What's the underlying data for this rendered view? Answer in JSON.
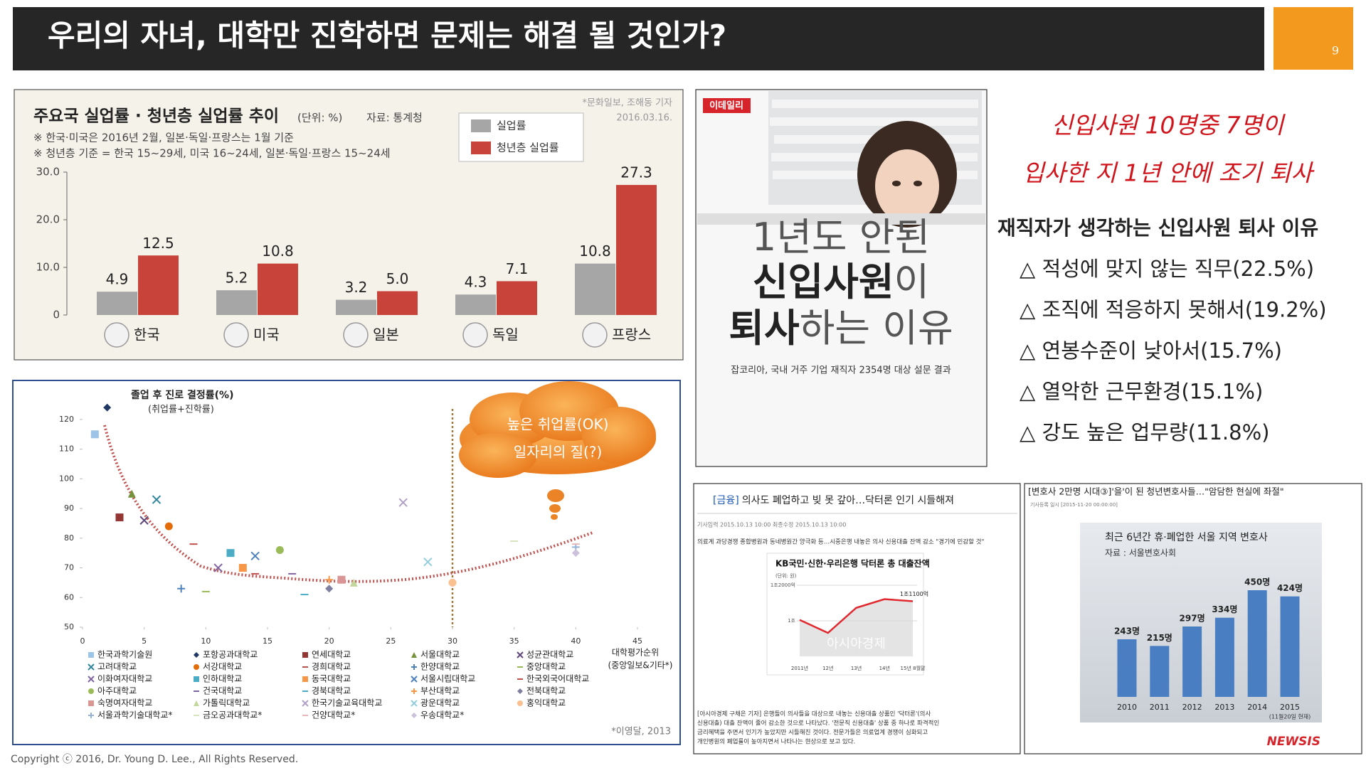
{
  "header": {
    "title": "우리의 자녀, 대학만 진학하면 문제는 해결 될 것인가?",
    "page_number": "9"
  },
  "unemployment_chart": {
    "type": "bar",
    "title": "주요국 실업률 · 청년층 실업률 추이",
    "unit": "(단위: %)",
    "source": "자료: 통계청",
    "credit": "*문화일보, 조해동 기자",
    "date": "2016.03.16.",
    "notes": [
      "※ 한국·미국은 2016년 2월, 일본·독일·프랑스는 1월 기준",
      "※ 청년층 기준 = 한국 15~29세, 미국 16~24세, 일본·독일·프랑스 15~24세"
    ],
    "categories": [
      "한국",
      "미국",
      "일본",
      "독일",
      "프랑스"
    ],
    "series": [
      {
        "name": "실업률",
        "color": "#a6a6a6",
        "values": [
          4.9,
          5.2,
          3.2,
          4.3,
          10.8
        ],
        "value_labels": [
          "4.9",
          "5.2",
          "3.2",
          "4.3",
          "10.8"
        ]
      },
      {
        "name": "청년층 실업률",
        "color": "#c8443a",
        "values": [
          12.5,
          10.8,
          5.0,
          7.1,
          27.3
        ],
        "value_labels": [
          "12.5",
          "10.8",
          "5.0",
          "7.1",
          "27.3"
        ]
      }
    ],
    "ylim": [
      0,
      30
    ],
    "yticks": [
      0,
      {
        "value": 10,
        "label": "10.0"
      },
      {
        "value": 20,
        "label": "20.0"
      },
      {
        "value": 30,
        "label": "30.0"
      }
    ]
  },
  "employment_chart": {
    "type": "scatter",
    "y_label": "졸업 후 진로 결정률(%)",
    "y_sublabel": "(취업률+진학률)",
    "x_label": "대학평가순위",
    "x_sublabel": "(중앙일보&기타*)",
    "callout": [
      "높은 취업률(OK)",
      "일자리의 질(?)"
    ],
    "credit": "*이영달, 2013",
    "xlim": [
      0,
      45
    ],
    "xticks": [
      0,
      5,
      10,
      15,
      20,
      25,
      30,
      35,
      40,
      45
    ],
    "ylim": [
      50,
      125
    ],
    "yticks": [
      50,
      60,
      70,
      80,
      90,
      100,
      110,
      120
    ],
    "reference_x": 30,
    "series": [
      {
        "name": "한국과학기술원",
        "color": "#9dc3e6",
        "marker": "square",
        "x": [
          1
        ],
        "values": [
          115
        ]
      },
      {
        "name": "포항공과대학교",
        "color": "#1f3864",
        "marker": "diamond",
        "x": [
          2
        ],
        "values": [
          124
        ]
      },
      {
        "name": "연세대학교",
        "color": "#943634",
        "marker": "square",
        "x": [
          3
        ],
        "values": [
          87
        ]
      },
      {
        "name": "서울대학교",
        "color": "#76923c",
        "marker": "triangle",
        "x": [
          4
        ],
        "values": [
          95
        ]
      },
      {
        "name": "성균관대학교",
        "color": "#5f497a",
        "marker": "x",
        "x": [
          5
        ],
        "values": [
          86
        ]
      },
      {
        "name": "고려대학교",
        "color": "#31859c",
        "marker": "x",
        "x": [
          6
        ],
        "values": [
          93
        ]
      },
      {
        "name": "서강대학교",
        "color": "#e36c09",
        "marker": "circle",
        "x": [
          7
        ],
        "values": [
          84
        ]
      },
      {
        "name": "경희대학교",
        "color": "#c0504d",
        "marker": "dash",
        "x": [
          9
        ],
        "values": [
          78
        ]
      },
      {
        "name": "한양대학교",
        "color": "#4f81bd",
        "marker": "plus",
        "x": [
          8
        ],
        "values": [
          63
        ]
      },
      {
        "name": "중앙대학교",
        "color": "#9bbb59",
        "marker": "dash",
        "x": [
          10
        ],
        "values": [
          62
        ]
      },
      {
        "name": "이화여자대학교",
        "color": "#8064a2",
        "marker": "x",
        "x": [
          11
        ],
        "values": [
          70
        ]
      },
      {
        "name": "인하대학교",
        "color": "#4bacc6",
        "marker": "square",
        "x": [
          12
        ],
        "values": [
          75
        ]
      },
      {
        "name": "동국대학교",
        "color": "#f79646",
        "marker": "square",
        "x": [
          13
        ],
        "values": [
          70
        ]
      },
      {
        "name": "서울시립대학교",
        "color": "#4f81bd",
        "marker": "x",
        "x": [
          14
        ],
        "values": [
          74
        ]
      },
      {
        "name": "한국외국어대학교",
        "color": "#c0504d",
        "marker": "dash",
        "x": [
          14
        ],
        "values": [
          68
        ]
      },
      {
        "name": "아주대학교",
        "color": "#9bbb59",
        "marker": "circle",
        "x": [
          16
        ],
        "values": [
          76
        ]
      },
      {
        "name": "건국대학교",
        "color": "#8064a2",
        "marker": "dash",
        "x": [
          17
        ],
        "values": [
          68
        ]
      },
      {
        "name": "경북대학교",
        "color": "#4bacc6",
        "marker": "dash",
        "x": [
          18
        ],
        "values": [
          61
        ]
      },
      {
        "name": "부산대학교",
        "color": "#f79646",
        "marker": "plus",
        "x": [
          20
        ],
        "values": [
          66
        ]
      },
      {
        "name": "전북대학교",
        "color": "#7f7f9f",
        "marker": "diamond",
        "x": [
          20
        ],
        "values": [
          63
        ]
      },
      {
        "name": "숙명여자대학교",
        "color": "#d99694",
        "marker": "square",
        "x": [
          21
        ],
        "values": [
          66
        ]
      },
      {
        "name": "가톨릭대학교",
        "color": "#c3d69b",
        "marker": "triangle",
        "x": [
          22
        ],
        "values": [
          65
        ]
      },
      {
        "name": "한국기술교육대학교",
        "color": "#b2a1c7",
        "marker": "x",
        "x": [
          26
        ],
        "values": [
          92
        ]
      },
      {
        "name": "광운대학교",
        "color": "#93cddd",
        "marker": "x",
        "x": [
          28
        ],
        "values": [
          72
        ]
      },
      {
        "name": "홍익대학교",
        "color": "#fac090",
        "marker": "circle",
        "x": [
          30
        ],
        "values": [
          65
        ]
      },
      {
        "name": "서울과학기술대학교*",
        "color": "#95b3d7",
        "marker": "plus",
        "x": [
          40
        ],
        "values": [
          77
        ]
      },
      {
        "name": "금오공과대학교*",
        "color": "#d7e4bd",
        "marker": "dash",
        "x": [
          35
        ],
        "values": [
          79
        ]
      },
      {
        "name": "건양대학교*",
        "color": "#e6b9b8",
        "marker": "dash",
        "x": [
          40
        ],
        "values": [
          78
        ]
      },
      {
        "name": "우송대학교*",
        "color": "#ccc1da",
        "marker": "diamond",
        "x": [
          40
        ],
        "values": [
          75
        ]
      }
    ]
  },
  "news_image": {
    "logo": "이데일리",
    "headline": [
      [
        "1년도 안된"
      ],
      [
        "신입사원",
        "이"
      ],
      [
        "퇴사",
        "하는 이유"
      ]
    ],
    "caption": "잡코리아, 국내 거주 기업 재직자 2354명 대상 설문 결과"
  },
  "survey": {
    "handwritten": [
      "신입사원 10명중 7명이",
      "입사한 지 1년 안에 조기 퇴사"
    ],
    "heading": "재직자가 생각하는 신입사원 퇴사 이유",
    "reasons": [
      "△ 적성에 맞지 않는 직무(22.5%)",
      "△ 조직에 적응하지 못해서(19.2%)",
      "△ 연봉수준이 낮아서(15.7%)",
      "△ 열악한 근무환경(15.1%)",
      "△ 강도 높은 업무량(11.8%)"
    ]
  },
  "doctor_loan_article": {
    "title_tag": "[금융]",
    "title": "의사도 폐업하고 빚 못 갚아…닥터론 인기 시들해져",
    "meta": "기사입력 2015.10.13 10:00   최종수정 2015.10.13 10:00",
    "subtitle": "의료계 과당경쟁 종합병원과 동네병원간 양극화 등…시중은행 내놓은 의사 신용대출 잔액 감소 \"경기에 민감할 것\"",
    "body_lines": [
      "[아시아경제 구채은 기자] 은행들이 의사들을 대상으로 내놓는 신용대출 상품인 '닥터론'(의사",
      "신용대출) 대출 잔액이 줄어 감소한 것으로 나타났다. '전문직 신용대출' 상품 중 하나로 파격적인",
      "금리혜택을 주면서 인기가 높았지만 시들해진 것이다. 전문가들은 의료업계 경쟁이 심화되고",
      "개인병원의 폐업률이 높아지면서 나타나는 현상으로 보고 있다."
    ],
    "chart": {
      "type": "line",
      "title": "KB국민·신한·우리은행 닥터론 총 대출잔액",
      "unit": "(단위: 원)",
      "watermark": "아시아경제",
      "color": "#e0282e",
      "categories": [
        "2011년",
        "12년",
        "13년",
        "14년",
        "15년 8월말"
      ],
      "values": [
        10050,
        9320,
        10730,
        11220,
        11100
      ],
      "value_labels": [
        null,
        null,
        null,
        null,
        "1조1100억"
      ],
      "ylim": [
        8000,
        12000
      ],
      "yticks": [
        {
          "value": 10000,
          "label": "1조"
        },
        {
          "value": 12000,
          "label": "1조2000억"
        }
      ]
    }
  },
  "lawyer_article": {
    "title": "[변호사 2만명 시대③]'을'이 된 청년변호사들…\"암담한 현실에 좌절\"",
    "meta": "기사등록 일시 [2015-11-20 00:00:00]",
    "logo": "NEWSIS",
    "chart": {
      "type": "bar",
      "title": "최근 6년간 휴·폐업한 서울 지역 변호사",
      "source": "자료 : 서울변호사회",
      "note": "(11월20일 현재)",
      "color": "#4a7ec2",
      "categories": [
        "2010",
        "2011",
        "2012",
        "2013",
        "2014",
        "2015"
      ],
      "values": [
        243,
        215,
        297,
        334,
        450,
        424
      ],
      "value_labels": [
        "243명",
        "215명",
        "297명",
        "334명",
        "450명",
        "424명"
      ]
    }
  },
  "footer": {
    "copyright": "Copyright ⓒ 2016, Dr. Young D. Lee., All Rights Reserved."
  }
}
